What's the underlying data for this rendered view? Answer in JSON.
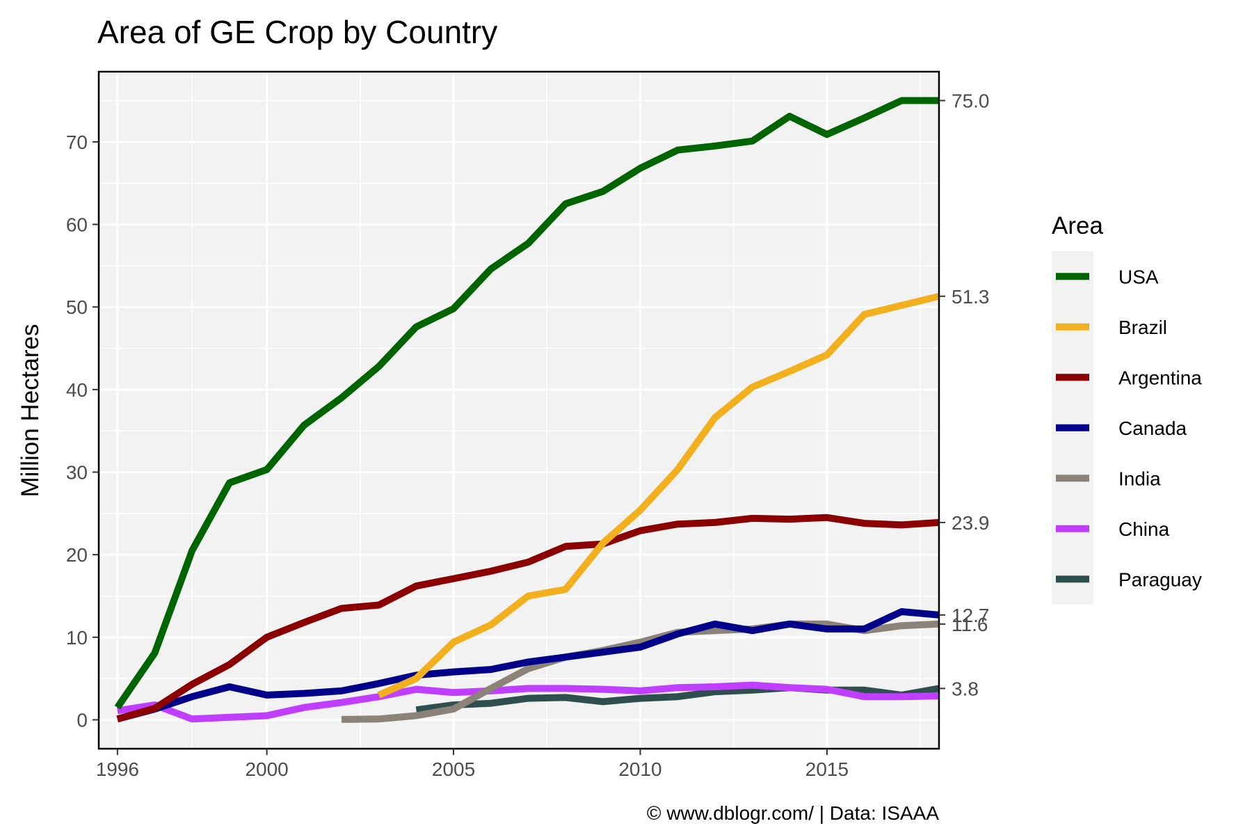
{
  "chart_data": {
    "type": "line",
    "title": "Area of GE Crop by Country",
    "ylabel": "Million Hectares",
    "xlabel": "",
    "caption": "© www.dblogr.com/  |  Data: ISAAA",
    "xlim": [
      1995.5,
      2018
    ],
    "ylim": [
      -3.5,
      78.5
    ],
    "x_ticks": [
      1996,
      2000,
      2005,
      2010,
      2015
    ],
    "y_ticks": [
      0,
      10,
      20,
      30,
      40,
      50,
      60,
      70
    ],
    "grid": true,
    "legend": {
      "title": "Area",
      "position": "right"
    },
    "series": [
      {
        "name": "USA",
        "color": "#006400",
        "x": [
          1996,
          1997,
          1998,
          1999,
          2000,
          2001,
          2002,
          2003,
          2004,
          2005,
          2006,
          2007,
          2008,
          2009,
          2010,
          2011,
          2012,
          2013,
          2014,
          2015,
          2016,
          2017,
          2018
        ],
        "y": [
          1.5,
          8.1,
          20.5,
          28.7,
          30.3,
          35.7,
          39.0,
          42.8,
          47.6,
          49.8,
          54.6,
          57.7,
          62.5,
          64.0,
          66.8,
          69.0,
          69.5,
          70.1,
          73.1,
          70.9,
          72.9,
          75.0,
          75.0
        ]
      },
      {
        "name": "Brazil",
        "color": "#f2b01e",
        "x": [
          2003,
          2004,
          2005,
          2006,
          2007,
          2008,
          2009,
          2010,
          2011,
          2012,
          2013,
          2014,
          2015,
          2016,
          2017,
          2018
        ],
        "y": [
          3.0,
          5.0,
          9.4,
          11.5,
          15.0,
          15.8,
          21.4,
          25.4,
          30.3,
          36.6,
          40.3,
          42.2,
          44.2,
          49.1,
          50.2,
          51.3
        ]
      },
      {
        "name": "Argentina",
        "color": "#8b0000",
        "x": [
          1996,
          1997,
          1998,
          1999,
          2000,
          2001,
          2002,
          2003,
          2004,
          2005,
          2006,
          2007,
          2008,
          2009,
          2010,
          2011,
          2012,
          2013,
          2014,
          2015,
          2016,
          2017,
          2018
        ],
        "y": [
          0.1,
          1.4,
          4.3,
          6.7,
          10.0,
          11.8,
          13.5,
          13.9,
          16.2,
          17.1,
          18.0,
          19.1,
          21.0,
          21.3,
          22.9,
          23.7,
          23.9,
          24.4,
          24.3,
          24.5,
          23.8,
          23.6,
          23.9
        ]
      },
      {
        "name": "Canada",
        "color": "#00008b",
        "x": [
          1996,
          1997,
          1998,
          1999,
          2000,
          2001,
          2002,
          2003,
          2004,
          2005,
          2006,
          2007,
          2008,
          2009,
          2010,
          2011,
          2012,
          2013,
          2014,
          2015,
          2016,
          2017,
          2018
        ],
        "y": [
          0.1,
          1.3,
          2.8,
          4.0,
          3.0,
          3.2,
          3.5,
          4.4,
          5.4,
          5.8,
          6.1,
          7.0,
          7.6,
          8.2,
          8.8,
          10.4,
          11.6,
          10.8,
          11.6,
          11.0,
          11.0,
          13.1,
          12.7
        ]
      },
      {
        "name": "India",
        "color": "#8b8378",
        "x": [
          2002,
          2003,
          2004,
          2005,
          2006,
          2007,
          2008,
          2009,
          2010,
          2011,
          2012,
          2013,
          2014,
          2015,
          2016,
          2017,
          2018
        ],
        "y": [
          0.05,
          0.1,
          0.5,
          1.3,
          3.8,
          6.2,
          7.6,
          8.4,
          9.4,
          10.6,
          10.8,
          11.0,
          11.6,
          11.6,
          10.8,
          11.4,
          11.6
        ]
      },
      {
        "name": "China",
        "color": "#bf3eff",
        "x": [
          1996,
          1997,
          1998,
          1999,
          2000,
          2001,
          2002,
          2003,
          2004,
          2005,
          2006,
          2007,
          2008,
          2009,
          2010,
          2011,
          2012,
          2013,
          2014,
          2015,
          2016,
          2017,
          2018
        ],
        "y": [
          1.1,
          1.8,
          0.1,
          0.3,
          0.5,
          1.5,
          2.1,
          2.8,
          3.7,
          3.3,
          3.5,
          3.8,
          3.8,
          3.7,
          3.5,
          3.9,
          4.0,
          4.2,
          3.9,
          3.7,
          2.8,
          2.8,
          2.9
        ]
      },
      {
        "name": "Paraguay",
        "color": "#2f4f4f",
        "x": [
          2004,
          2005,
          2006,
          2007,
          2008,
          2009,
          2010,
          2011,
          2012,
          2013,
          2014,
          2015,
          2016,
          2017,
          2018
        ],
        "y": [
          1.2,
          1.8,
          2.0,
          2.6,
          2.7,
          2.2,
          2.6,
          2.8,
          3.4,
          3.6,
          3.9,
          3.6,
          3.6,
          3.0,
          3.8
        ]
      }
    ],
    "end_labels": [
      {
        "text": "75.0",
        "value": 75.0
      },
      {
        "text": "51.3",
        "value": 51.3
      },
      {
        "text": "23.9",
        "value": 23.9
      },
      {
        "text": "12.7",
        "value": 12.7
      },
      {
        "text": "11.6",
        "value": 11.6
      },
      {
        "text": "3.8",
        "value": 3.8
      }
    ]
  }
}
